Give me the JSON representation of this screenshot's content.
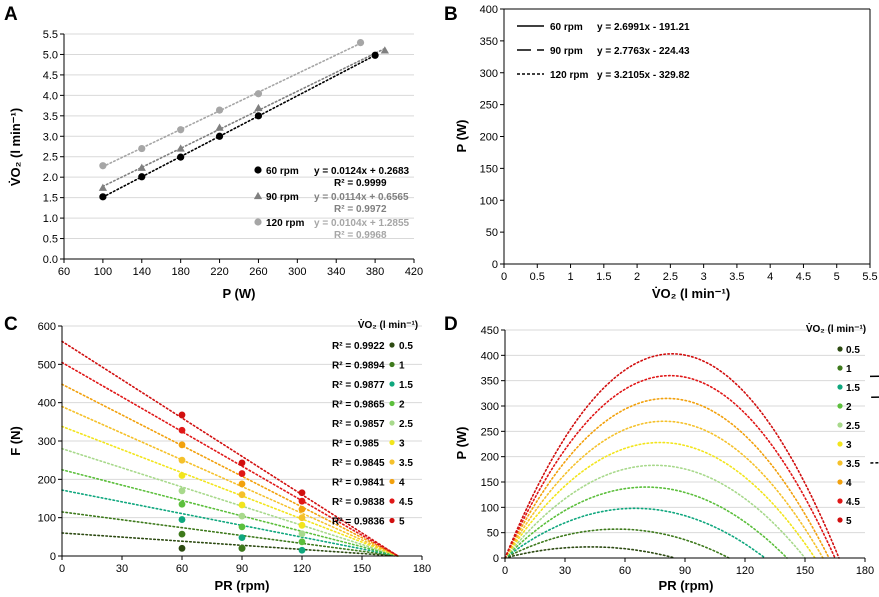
{
  "colors": {
    "axis": "#000000",
    "gridline": "#d9d9d9",
    "levels": [
      "#2d4a12",
      "#3e7a1c",
      "#0fa77e",
      "#5cbf3c",
      "#a8d98c",
      "#f2e51c",
      "#f5c12b",
      "#f2a10d",
      "#e01717",
      "#d10f0f"
    ]
  },
  "chart_data": [
    {
      "panel": "A",
      "type": "scatter",
      "xlabel": "P (W)",
      "ylabel": "V̇O₂ (l min⁻¹)",
      "xlim": [
        60,
        420
      ],
      "ylim": [
        0,
        5.5
      ],
      "xticks": [
        "60",
        "100",
        "140",
        "180",
        "220",
        "260",
        "300",
        "340",
        "380",
        "420"
      ],
      "yticks": [
        "0.0",
        "0.5",
        "1.0",
        "1.5",
        "2.0",
        "2.5",
        "3.0",
        "3.5",
        "4.0",
        "4.5",
        "5.0",
        "5.5"
      ],
      "series": [
        {
          "name": "60 rpm",
          "marker": "circle",
          "color": "#000000",
          "x": [
            100,
            140,
            180,
            220,
            260,
            380
          ],
          "y": [
            1.52,
            2.01,
            2.49,
            3.0,
            3.5,
            4.98
          ],
          "trend": "y = 0.0124x + 0.2683",
          "r2": "R² = 0.9999"
        },
        {
          "name": "90 rpm",
          "marker": "triangle",
          "color": "#808080",
          "x": [
            100,
            140,
            180,
            220,
            260,
            390
          ],
          "y": [
            1.74,
            2.23,
            2.7,
            3.21,
            3.69,
            5.1
          ],
          "trend": "y = 0.0114x + 0.6565",
          "r2": "R² = 0.9972"
        },
        {
          "name": "120 rpm",
          "marker": "circle",
          "color": "#a6a6a6",
          "x": [
            100,
            140,
            180,
            220,
            260,
            365
          ],
          "y": [
            2.28,
            2.7,
            3.16,
            3.64,
            4.04,
            5.29
          ],
          "trend": "y = 0.0104x + 1.2855",
          "r2": "R² = 0.9968"
        }
      ]
    },
    {
      "panel": "B",
      "type": "line",
      "xlabel": "V̇O₂ (l min⁻¹)",
      "ylabel": "P (W)",
      "xlim": [
        0,
        5.5
      ],
      "ylim": [
        0,
        400
      ],
      "xticks": [
        "0",
        "0.5",
        "1",
        "1.5",
        "2",
        "2.5",
        "3",
        "3.5",
        "4",
        "4.5",
        "5",
        "5.5"
      ],
      "yticks": [
        "0",
        "50",
        "100",
        "150",
        "200",
        "250",
        "300",
        "350",
        "400"
      ],
      "series": [
        {
          "name": "60 rpm",
          "equation": "y = 2.6991x - 191.21",
          "slope": 2.6991,
          "intercept": -191.21,
          "dash": "solid"
        },
        {
          "name": "90 rpm",
          "equation": "y = 2.7763x - 224.43",
          "slope": 2.7763,
          "intercept": -224.43,
          "dash": "long"
        },
        {
          "name": "120 rpm",
          "equation": "y = 3.2105x - 329.82",
          "slope": 3.2105,
          "intercept": -329.82,
          "dash": "short"
        }
      ]
    },
    {
      "panel": "C",
      "type": "scatter",
      "xlabel": "PR (rpm)",
      "ylabel": "F (N)",
      "xlim": [
        0,
        180
      ],
      "ylim": [
        0,
        600
      ],
      "xticks": [
        "0",
        "30",
        "60",
        "90",
        "120",
        "150",
        "180"
      ],
      "yticks": [
        "0",
        "100",
        "200",
        "300",
        "400",
        "500",
        "600"
      ],
      "legend_title": "V̇O₂ (l min⁻¹)",
      "x": [
        60,
        90,
        120
      ],
      "series": [
        {
          "name": "0.5",
          "r2": "R² = 0.9922",
          "intercept": 60,
          "values": [
            20,
            20,
            0
          ]
        },
        {
          "name": "1",
          "r2": "R² = 0.9894",
          "intercept": 115,
          "values": [
            57,
            20,
            0
          ]
        },
        {
          "name": "1.5",
          "r2": "R² = 0.9877",
          "intercept": 172,
          "values": [
            95,
            48,
            15
          ]
        },
        {
          "name": "2",
          "r2": "R² = 0.9865",
          "intercept": 225,
          "values": [
            135,
            76,
            37
          ]
        },
        {
          "name": "2.5",
          "r2": "R² = 0.9857",
          "intercept": 280,
          "values": [
            170,
            104,
            58
          ]
        },
        {
          "name": "3",
          "r2": "R² = 0.985",
          "intercept": 338,
          "values": [
            210,
            133,
            80
          ]
        },
        {
          "name": "3.5",
          "r2": "R² = 0.9845",
          "intercept": 390,
          "values": [
            250,
            160,
            100
          ]
        },
        {
          "name": "4",
          "r2": "R² = 0.9841",
          "intercept": 448,
          "values": [
            290,
            188,
            122
          ]
        },
        {
          "name": "4.5",
          "r2": "R² = 0.9838",
          "intercept": 505,
          "values": [
            328,
            215,
            143
          ]
        },
        {
          "name": "5",
          "r2": "R² = 0.9836",
          "intercept": 560,
          "values": [
            368,
            243,
            165
          ]
        }
      ]
    },
    {
      "panel": "D",
      "type": "line",
      "xlabel": "PR (rpm)",
      "ylabel": "P (W)",
      "xlim": [
        0,
        180
      ],
      "ylim": [
        0,
        450
      ],
      "xticks": [
        "0",
        "30",
        "60",
        "90",
        "120",
        "150",
        "180"
      ],
      "yticks": [
        "0",
        "50",
        "100",
        "150",
        "200",
        "250",
        "300",
        "350",
        "400",
        "450"
      ],
      "legend_title": "V̇O₂ (l min⁻¹)",
      "series": [
        {
          "name": "0.5",
          "zero_x": 85,
          "peak": 22
        },
        {
          "name": "1",
          "zero_x": 112,
          "peak": 57
        },
        {
          "name": "1.5",
          "zero_x": 130,
          "peak": 98
        },
        {
          "name": "2",
          "zero_x": 141,
          "peak": 140
        },
        {
          "name": "2.5",
          "zero_x": 150,
          "peak": 183
        },
        {
          "name": "3",
          "zero_x": 155,
          "peak": 228
        },
        {
          "name": "3.5",
          "zero_x": 159,
          "peak": 270
        },
        {
          "name": "4",
          "zero_x": 162,
          "peak": 315
        },
        {
          "name": "4.5",
          "zero_x": 165,
          "peak": 360
        },
        {
          "name": "5",
          "zero_x": 167,
          "peak": 403
        }
      ]
    }
  ]
}
